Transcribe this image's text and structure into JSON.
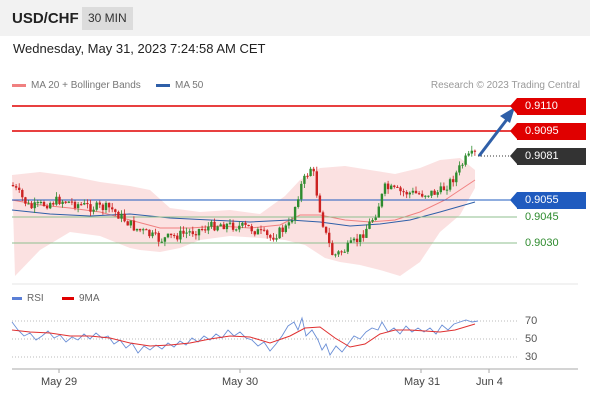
{
  "header": {
    "pair": "USD/CHF",
    "timeframe": "30 MIN"
  },
  "datetime": "Wednesday, May 31, 2023 7:24:58 AM CET",
  "legend": [
    {
      "label": "MA 20 + Bollinger Bands",
      "color": "#f08080"
    },
    {
      "label": "MA 50",
      "color": "#2f5fa8"
    }
  ],
  "credit": "Research © 2023 Trading Central",
  "levels": {
    "r2": "0.9110",
    "r1": "0.9095",
    "last": "0.9081",
    "pivot": "0.9055",
    "s1": "0.9045",
    "s2": "0.9030"
  },
  "colors": {
    "resistance": "#e00000",
    "pivot": "#1f5bbf",
    "last": "#333333",
    "support": "#2e8b2e",
    "rsi": "#6b8fd6",
    "rsi_ma": "#e03030"
  },
  "rsi_panel": {
    "legend": [
      {
        "label": "RSI",
        "color": "#5b7fd6"
      },
      {
        "label": "9MA",
        "color": "#e00000"
      }
    ],
    "levels": [
      "70",
      "50",
      "30"
    ]
  },
  "xaxis": [
    "May 29",
    "May 30",
    "May 31",
    "Jun 4"
  ]
}
